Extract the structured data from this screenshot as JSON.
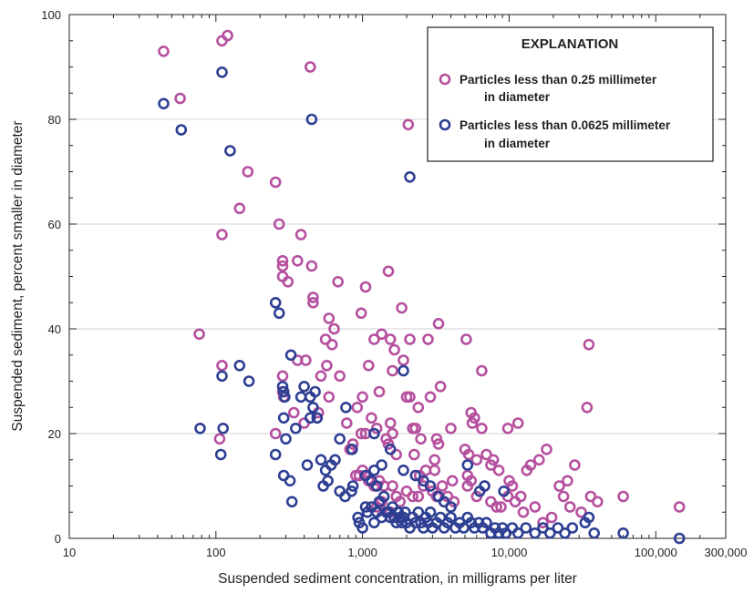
{
  "chart_data": {
    "type": "scatter",
    "xlabel": "Suspended sediment concentration, in milligrams per liter",
    "ylabel": "Suspended sediment, percent smaller in diameter",
    "xscale": "log",
    "xlim": [
      10,
      300000
    ],
    "ylim": [
      0,
      100
    ],
    "x_ticks": [
      10,
      100,
      1000,
      10000,
      100000,
      300000
    ],
    "x_tick_labels": [
      "10",
      "100",
      "1,000",
      "10,000",
      "100,000",
      "300,000"
    ],
    "y_ticks": [
      0,
      20,
      40,
      60,
      80,
      100
    ],
    "y_tick_labels": [
      "0",
      "20",
      "40",
      "60",
      "80",
      "100"
    ],
    "legend": {
      "title": "EXPLANATION",
      "position": "top-right",
      "entries": [
        {
          "label_lines": [
            "Particles less than 0.25 millimeter",
            "in diameter"
          ],
          "color": "#b5509f"
        },
        {
          "label_lines": [
            "Particles less than 0.0625 millimeter",
            "in diameter"
          ],
          "color": "#2e3f93"
        }
      ]
    },
    "series": [
      {
        "name": "Particles less than 0.25 millimeter in diameter",
        "color": "#b5509f",
        "points": [
          [
            44,
            93
          ],
          [
            57,
            84
          ],
          [
            110,
            95
          ],
          [
            120,
            96
          ],
          [
            440,
            90
          ],
          [
            2050,
            79
          ],
          [
            165,
            70
          ],
          [
            145,
            63
          ],
          [
            255,
            68
          ],
          [
            270,
            60
          ],
          [
            110,
            58
          ],
          [
            380,
            58
          ],
          [
            285,
            53
          ],
          [
            285,
            52
          ],
          [
            285,
            50
          ],
          [
            450,
            52
          ],
          [
            310,
            49
          ],
          [
            360,
            53
          ],
          [
            680,
            49
          ],
          [
            77,
            39
          ],
          [
            110,
            33
          ],
          [
            106,
            19
          ],
          [
            255,
            20
          ],
          [
            590,
            42
          ],
          [
            460,
            46
          ],
          [
            460,
            45
          ],
          [
            620,
            37
          ],
          [
            640,
            40
          ],
          [
            560,
            38
          ],
          [
            1050,
            48
          ],
          [
            1850,
            44
          ],
          [
            1500,
            51
          ],
          [
            980,
            43
          ],
          [
            1200,
            38
          ],
          [
            1350,
            39
          ],
          [
            1550,
            38
          ],
          [
            2100,
            38
          ],
          [
            2800,
            38
          ],
          [
            3300,
            41
          ],
          [
            5100,
            38
          ],
          [
            410,
            34
          ],
          [
            360,
            34
          ],
          [
            520,
            31
          ],
          [
            700,
            31
          ],
          [
            570,
            33
          ],
          [
            590,
            27
          ],
          [
            1100,
            33
          ],
          [
            1600,
            32
          ],
          [
            1650,
            36
          ],
          [
            1900,
            34
          ],
          [
            3400,
            29
          ],
          [
            6500,
            32
          ],
          [
            35000,
            37
          ],
          [
            34000,
            25
          ],
          [
            11500,
            22
          ],
          [
            13200,
            13
          ],
          [
            5500,
            24
          ],
          [
            5800,
            23
          ],
          [
            5600,
            22
          ],
          [
            6500,
            21
          ],
          [
            9800,
            21
          ],
          [
            500,
            24
          ],
          [
            490,
            23
          ],
          [
            340,
            24
          ],
          [
            400,
            22
          ],
          [
            285,
            31
          ],
          [
            285,
            28
          ],
          [
            290,
            27
          ],
          [
            780,
            22
          ],
          [
            820,
            17
          ],
          [
            860,
            18
          ],
          [
            920,
            25
          ],
          [
            1000,
            27
          ],
          [
            980,
            20
          ],
          [
            1050,
            20
          ],
          [
            1150,
            23
          ],
          [
            1250,
            21
          ],
          [
            1300,
            28
          ],
          [
            1450,
            19
          ],
          [
            1550,
            22
          ],
          [
            1600,
            20
          ],
          [
            2000,
            27
          ],
          [
            2100,
            27
          ],
          [
            2200,
            21
          ],
          [
            2300,
            21
          ],
          [
            2400,
            25
          ],
          [
            2500,
            19
          ],
          [
            2900,
            27
          ],
          [
            3100,
            15
          ],
          [
            3200,
            19
          ],
          [
            4000,
            21
          ],
          [
            4100,
            11
          ],
          [
            5000,
            17
          ],
          [
            5300,
            16
          ],
          [
            5500,
            11
          ],
          [
            5200,
            12
          ],
          [
            6000,
            15
          ],
          [
            7000,
            16
          ],
          [
            7500,
            14
          ],
          [
            7800,
            15
          ],
          [
            8500,
            13
          ],
          [
            10000,
            11
          ],
          [
            10500,
            10
          ],
          [
            12000,
            8
          ],
          [
            14000,
            14
          ],
          [
            16000,
            15
          ],
          [
            18000,
            17
          ],
          [
            22000,
            10
          ],
          [
            25000,
            11
          ],
          [
            28000,
            14
          ],
          [
            31000,
            5
          ],
          [
            36000,
            8
          ],
          [
            40000,
            7
          ],
          [
            60000,
            8
          ],
          [
            145000,
            6
          ],
          [
            900,
            12
          ],
          [
            950,
            12
          ],
          [
            1000,
            13
          ],
          [
            1100,
            11
          ],
          [
            1200,
            10
          ],
          [
            1300,
            11
          ],
          [
            1400,
            10
          ],
          [
            1600,
            10
          ],
          [
            1700,
            8
          ],
          [
            1800,
            7
          ],
          [
            2000,
            9
          ],
          [
            2200,
            8
          ],
          [
            2400,
            8
          ],
          [
            2600,
            10
          ],
          [
            3000,
            9
          ],
          [
            3200,
            8
          ],
          [
            3500,
            10
          ],
          [
            3800,
            8
          ],
          [
            4200,
            7
          ],
          [
            5200,
            10
          ],
          [
            6000,
            8
          ],
          [
            6800,
            10
          ],
          [
            7500,
            7
          ],
          [
            8200,
            6
          ],
          [
            8800,
            6
          ],
          [
            9800,
            8
          ],
          [
            11000,
            7
          ],
          [
            12500,
            5
          ],
          [
            15000,
            6
          ],
          [
            17000,
            3
          ],
          [
            19500,
            4
          ],
          [
            23500,
            8
          ],
          [
            26000,
            6
          ],
          [
            1500,
            18
          ],
          [
            1700,
            16
          ],
          [
            2250,
            16
          ],
          [
            2700,
            13
          ],
          [
            3100,
            13
          ],
          [
            2450,
            12
          ],
          [
            3300,
            18
          ],
          [
            1250,
            6
          ],
          [
            1350,
            7
          ],
          [
            1550,
            5
          ],
          [
            1750,
            5
          ]
        ]
      },
      {
        "name": "Particles less than 0.0625 millimeter in diameter",
        "color": "#2e3f93",
        "points": [
          [
            44,
            83
          ],
          [
            58,
            78
          ],
          [
            110,
            89
          ],
          [
            125,
            74
          ],
          [
            450,
            80
          ],
          [
            2100,
            69
          ],
          [
            255,
            45
          ],
          [
            270,
            43
          ],
          [
            145,
            33
          ],
          [
            168,
            30
          ],
          [
            110,
            31
          ],
          [
            78,
            21
          ],
          [
            112,
            21
          ],
          [
            108,
            16
          ],
          [
            255,
            16
          ],
          [
            325,
            35
          ],
          [
            400,
            29
          ],
          [
            285,
            29
          ],
          [
            290,
            28
          ],
          [
            295,
            27
          ],
          [
            380,
            27
          ],
          [
            440,
            27
          ],
          [
            350,
            21
          ],
          [
            290,
            23
          ],
          [
            460,
            25
          ],
          [
            770,
            25
          ],
          [
            1900,
            32
          ],
          [
            475,
            28
          ],
          [
            440,
            23
          ],
          [
            490,
            23
          ],
          [
            1200,
            20
          ],
          [
            700,
            19
          ],
          [
            850,
            17
          ],
          [
            300,
            19
          ],
          [
            290,
            12
          ],
          [
            320,
            11
          ],
          [
            330,
            7
          ],
          [
            420,
            14
          ],
          [
            520,
            15
          ],
          [
            540,
            10
          ],
          [
            560,
            13
          ],
          [
            580,
            11
          ],
          [
            610,
            14
          ],
          [
            650,
            15
          ],
          [
            700,
            9
          ],
          [
            760,
            8
          ],
          [
            840,
            9
          ],
          [
            860,
            10
          ],
          [
            930,
            4
          ],
          [
            950,
            3
          ],
          [
            1000,
            2
          ],
          [
            1050,
            6
          ],
          [
            1080,
            5
          ],
          [
            1150,
            6
          ],
          [
            1200,
            3
          ],
          [
            1250,
            5
          ],
          [
            1300,
            7
          ],
          [
            1350,
            4
          ],
          [
            1400,
            8
          ],
          [
            1450,
            5
          ],
          [
            1500,
            5
          ],
          [
            1550,
            4
          ],
          [
            1600,
            6
          ],
          [
            1650,
            4
          ],
          [
            1700,
            3
          ],
          [
            1750,
            5
          ],
          [
            1800,
            4
          ],
          [
            1850,
            3
          ],
          [
            1900,
            4
          ],
          [
            1950,
            5
          ],
          [
            2000,
            3
          ],
          [
            2100,
            2
          ],
          [
            2200,
            4
          ],
          [
            2300,
            3
          ],
          [
            2400,
            5
          ],
          [
            2500,
            3
          ],
          [
            2600,
            2
          ],
          [
            2700,
            4
          ],
          [
            2800,
            3
          ],
          [
            2900,
            5
          ],
          [
            3000,
            2
          ],
          [
            3200,
            3
          ],
          [
            3400,
            4
          ],
          [
            3600,
            2
          ],
          [
            3800,
            3
          ],
          [
            4000,
            4
          ],
          [
            4300,
            2
          ],
          [
            4600,
            3
          ],
          [
            4900,
            2
          ],
          [
            5200,
            4
          ],
          [
            5500,
            3
          ],
          [
            5800,
            2
          ],
          [
            6200,
            3
          ],
          [
            6600,
            2
          ],
          [
            7000,
            3
          ],
          [
            7500,
            1
          ],
          [
            8000,
            2
          ],
          [
            8500,
            1
          ],
          [
            9000,
            2
          ],
          [
            9500,
            1
          ],
          [
            10500,
            2
          ],
          [
            11500,
            1
          ],
          [
            13000,
            2
          ],
          [
            15000,
            1
          ],
          [
            17000,
            2
          ],
          [
            19000,
            1
          ],
          [
            21500,
            2
          ],
          [
            24000,
            1
          ],
          [
            27000,
            2
          ],
          [
            33000,
            3
          ],
          [
            35000,
            4
          ],
          [
            38000,
            1
          ],
          [
            60000,
            1
          ],
          [
            145000,
            0
          ],
          [
            1050,
            12
          ],
          [
            1150,
            11
          ],
          [
            1250,
            10
          ],
          [
            1350,
            14
          ],
          [
            1550,
            17
          ],
          [
            1900,
            13
          ],
          [
            2300,
            12
          ],
          [
            2600,
            11
          ],
          [
            2900,
            10
          ],
          [
            3300,
            8
          ],
          [
            3600,
            7
          ],
          [
            4000,
            6
          ],
          [
            5200,
            14
          ],
          [
            6300,
            9
          ],
          [
            6800,
            10
          ],
          [
            9200,
            9
          ],
          [
            1200,
            13
          ]
        ]
      }
    ]
  }
}
